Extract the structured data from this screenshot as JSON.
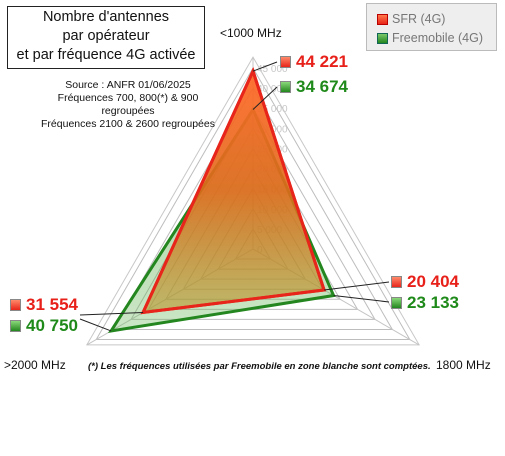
{
  "title": [
    "Nombre d'antennes",
    "par opérateur",
    "et par fréquence 4G activée"
  ],
  "source": [
    "Source : ANFR 01/06/2025",
    "Fréquences 700, 800(*) & 900 regroupées",
    "Fréquences 2100 & 2600 regroupées"
  ],
  "footnote": "(*) Les fréquences utilisées par Freemobile en zone blanche sont comptées.",
  "colors": {
    "sfr": "#e8251a",
    "free": "#23861e",
    "sfr_label": "#e8201a",
    "free_label": "#1f8a1a"
  },
  "chart_data": {
    "type": "radar",
    "axes": [
      "<1000 MHz",
      "1800 MHz",
      ">2000 MHz"
    ],
    "scale": {
      "min": 0,
      "max": 45000,
      "step": 5000
    },
    "tick_labels": [
      "0",
      "5 000",
      "10 000",
      "15 000",
      "20 000",
      "25 000",
      "30 000",
      "35 000",
      "40 000",
      "45 000"
    ],
    "series": [
      {
        "name": "SFR (4G)",
        "values": [
          44221,
          20404,
          31554
        ],
        "labels": [
          "44 221",
          "20 404",
          "31 554"
        ]
      },
      {
        "name": "Freemobile (4G)",
        "values": [
          34674,
          23133,
          40750
        ],
        "labels": [
          "34 674",
          "23 133",
          "40 750"
        ]
      }
    ],
    "legend_position": "top-right"
  }
}
